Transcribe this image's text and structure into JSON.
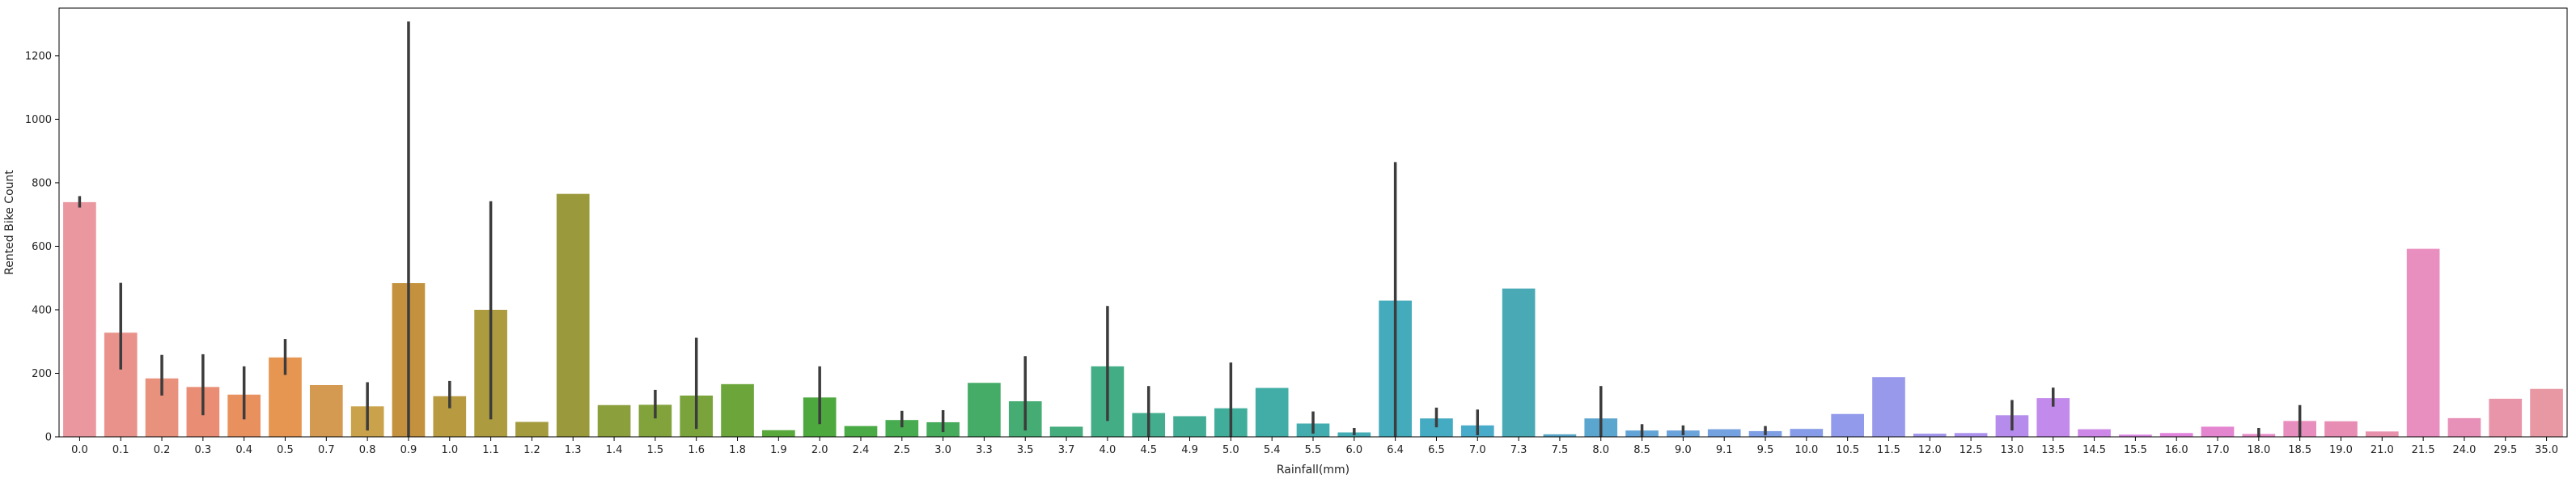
{
  "chart_data": {
    "type": "bar",
    "xlabel": "Rainfall(mm)",
    "ylabel": "Rented Bike Count",
    "ylim": [
      0,
      1350
    ],
    "yticks": [
      0,
      200,
      400,
      600,
      800,
      1000,
      1200
    ],
    "grid": false,
    "error_bars": true,
    "categories": [
      "0.0",
      "0.1",
      "0.2",
      "0.3",
      "0.4",
      "0.5",
      "0.7",
      "0.8",
      "0.9",
      "1.0",
      "1.1",
      "1.2",
      "1.3",
      "1.4",
      "1.5",
      "1.6",
      "1.8",
      "1.9",
      "2.0",
      "2.4",
      "2.5",
      "3.0",
      "3.3",
      "3.5",
      "3.7",
      "4.0",
      "4.5",
      "4.9",
      "5.0",
      "5.4",
      "5.5",
      "6.0",
      "6.4",
      "6.5",
      "7.0",
      "7.3",
      "7.5",
      "8.0",
      "8.5",
      "9.0",
      "9.1",
      "9.5",
      "10.0",
      "10.5",
      "11.5",
      "12.0",
      "12.5",
      "13.0",
      "13.5",
      "14.5",
      "15.5",
      "16.0",
      "17.0",
      "18.0",
      "18.5",
      "19.0",
      "21.0",
      "21.5",
      "24.0",
      "29.5",
      "35.0"
    ],
    "values": [
      739,
      328,
      184,
      157,
      133,
      250,
      163,
      96,
      484,
      128,
      400,
      47,
      765,
      100,
      101,
      130,
      166,
      21,
      124,
      34,
      53,
      46,
      170,
      112,
      32,
      222,
      75,
      65,
      90,
      154,
      42,
      14,
      429,
      58,
      36,
      467,
      8,
      58,
      20,
      20,
      24,
      18,
      25,
      72,
      188,
      10,
      12,
      68,
      122,
      24,
      7,
      12,
      32,
      9,
      50,
      49,
      17,
      592,
      59,
      120,
      151
    ],
    "errors": [
      [
        722,
        758
      ],
      [
        212,
        485
      ],
      [
        130,
        258
      ],
      [
        68,
        260
      ],
      [
        55,
        222
      ],
      [
        195,
        308
      ],
      null,
      [
        20,
        172
      ],
      [
        0,
        1308
      ],
      [
        90,
        176
      ],
      [
        55,
        742
      ],
      null,
      null,
      null,
      [
        58,
        148
      ],
      [
        25,
        312
      ],
      null,
      null,
      [
        40,
        222
      ],
      null,
      [
        30,
        82
      ],
      [
        15,
        84
      ],
      null,
      [
        20,
        254
      ],
      null,
      [
        50,
        412
      ],
      [
        0,
        160
      ],
      null,
      [
        0,
        234
      ],
      null,
      [
        10,
        80
      ],
      [
        5,
        28
      ],
      [
        0,
        865
      ],
      [
        30,
        92
      ],
      [
        5,
        86
      ],
      null,
      null,
      [
        0,
        160
      ],
      [
        0,
        40
      ],
      [
        5,
        36
      ],
      null,
      [
        5,
        34
      ],
      null,
      null,
      null,
      null,
      null,
      [
        20,
        116
      ],
      [
        95,
        155
      ],
      null,
      null,
      null,
      null,
      [
        0,
        28
      ],
      [
        0,
        100
      ],
      null,
      null,
      null,
      null,
      null,
      null
    ],
    "colors": [
      "#ea97a0",
      "#e9928c",
      "#e8917c",
      "#e98e74",
      "#e9905f",
      "#e69651",
      "#d59a51",
      "#c9a24b",
      "#c4923e",
      "#b89a40",
      "#ac9c3f",
      "#a39b3e",
      "#9a9a3c",
      "#8c9f3d",
      "#82a23b",
      "#7aa43b",
      "#6ca63b",
      "#58a83c",
      "#4da93e",
      "#4aaa46",
      "#47ab4f",
      "#46ab5b",
      "#45ac67",
      "#45ac73",
      "#44ac7d",
      "#43ad86",
      "#43ad8d",
      "#42ad94",
      "#41ae9c",
      "#42ada6",
      "#42acae",
      "#43acb5",
      "#44abbc",
      "#45abc2",
      "#47abc9",
      "#49aab5",
      "#55a6c8",
      "#5ba6cf",
      "#63a4d6",
      "#6ba3db",
      "#74a1e0",
      "#7e9fe4",
      "#879ce8",
      "#919aeb",
      "#9999ec",
      "#a196ec",
      "#ac91ed",
      "#b58cec",
      "#c28aea",
      "#cd88e7",
      "#d985e1",
      "#e083db",
      "#e485d0",
      "#e68ac6",
      "#e88ebe",
      "#e78db3",
      "#e891ad",
      "#e88fc0",
      "#e891b8",
      "#e895aa",
      "#e898a3"
    ]
  }
}
